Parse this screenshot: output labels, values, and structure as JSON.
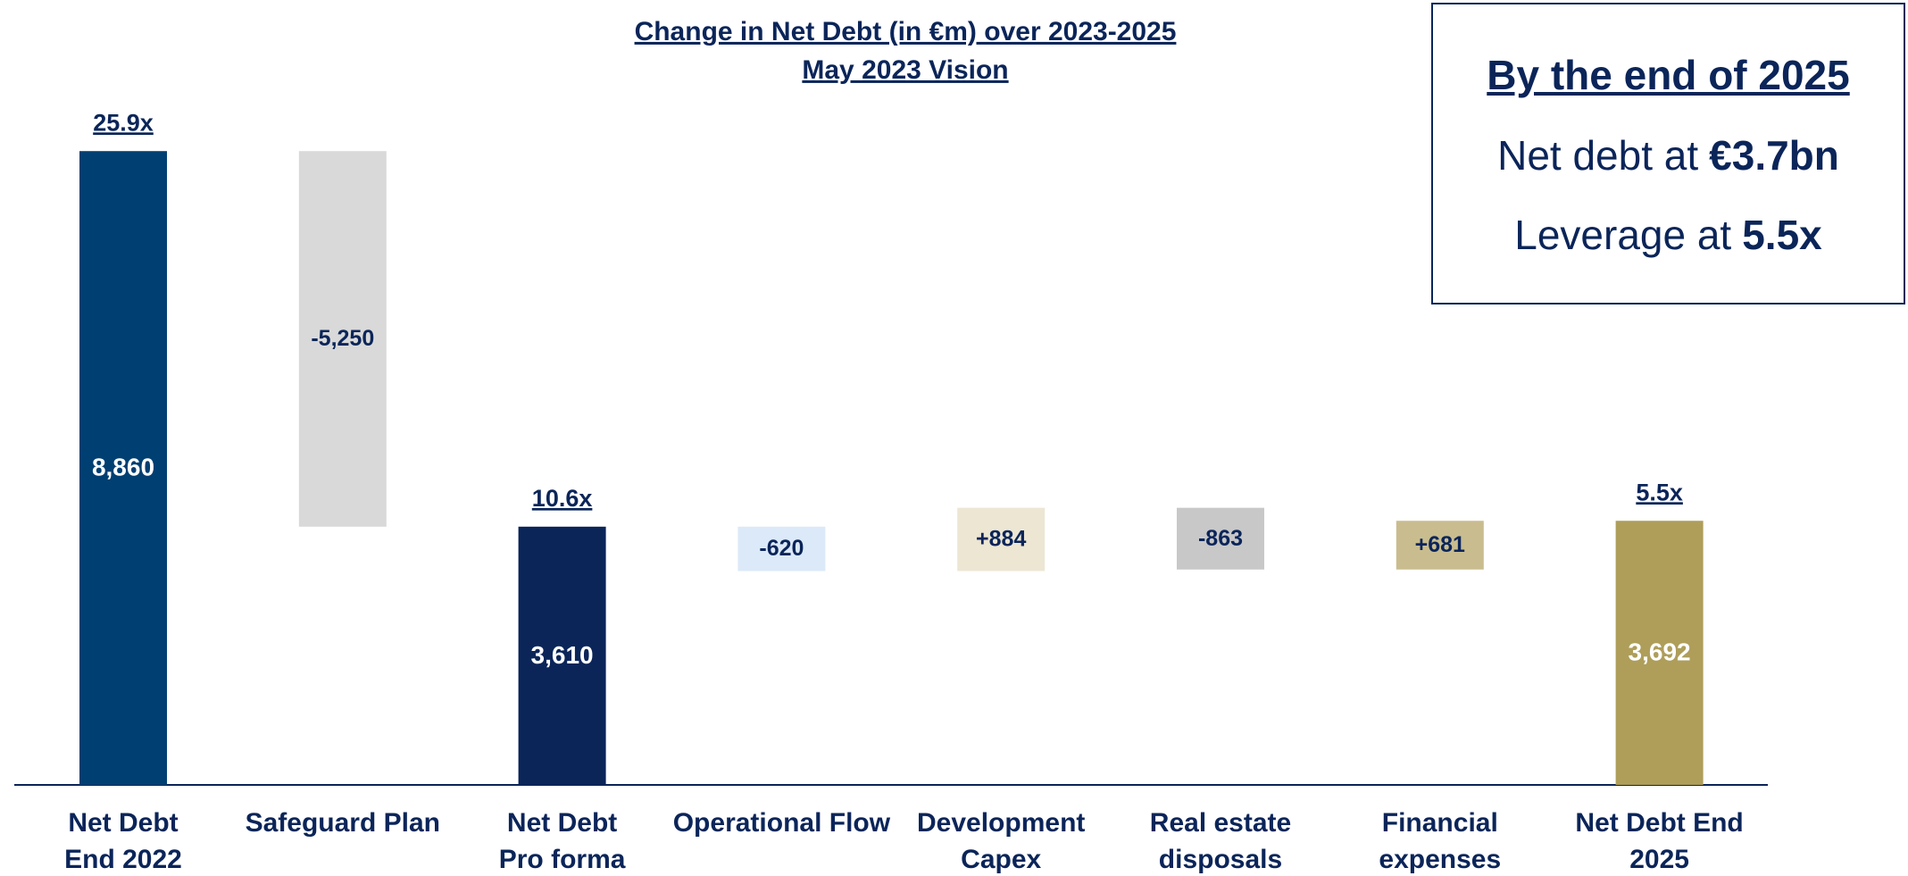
{
  "chart_data": {
    "type": "waterfall",
    "title": "Change in Net Debt (in €m) over 2023-2025",
    "subtitle": "May 2023 Vision",
    "categories": [
      [
        "Net Debt",
        "End 2022"
      ],
      [
        "Safeguard Plan"
      ],
      [
        "Net Debt",
        "Pro forma"
      ],
      [
        "Operational Flow"
      ],
      [
        "Development",
        "Capex"
      ],
      [
        "Real estate",
        "disposals"
      ],
      [
        "Financial",
        "expenses"
      ],
      [
        "Net Debt End",
        "2025"
      ]
    ],
    "values": [
      8860,
      -5250,
      3610,
      -620,
      884,
      -863,
      681,
      3692
    ],
    "value_labels": [
      "8,860",
      "-5,250",
      "3,610",
      "-620",
      "+884",
      "-863",
      "+681",
      "3,692"
    ],
    "totals": [
      true,
      false,
      true,
      false,
      false,
      false,
      false,
      true
    ],
    "leverage_labels": [
      "25.9x",
      null,
      "10.6x",
      null,
      null,
      null,
      null,
      "5.5x"
    ],
    "colors": [
      "#003f72",
      "#d9d9d9",
      "#0b2559",
      "#dce9f8",
      "#ece6d3",
      "#c8c8c8",
      "#c9bd8f",
      "#ae9e5a"
    ],
    "ylim": [
      0,
      9000
    ]
  },
  "callout": {
    "title": "By the end of 2025",
    "lines": [
      {
        "text": "Net debt at",
        "emphasis": "€3.7bn"
      },
      {
        "text": "Leverage at",
        "emphasis": "5.5x"
      }
    ]
  }
}
